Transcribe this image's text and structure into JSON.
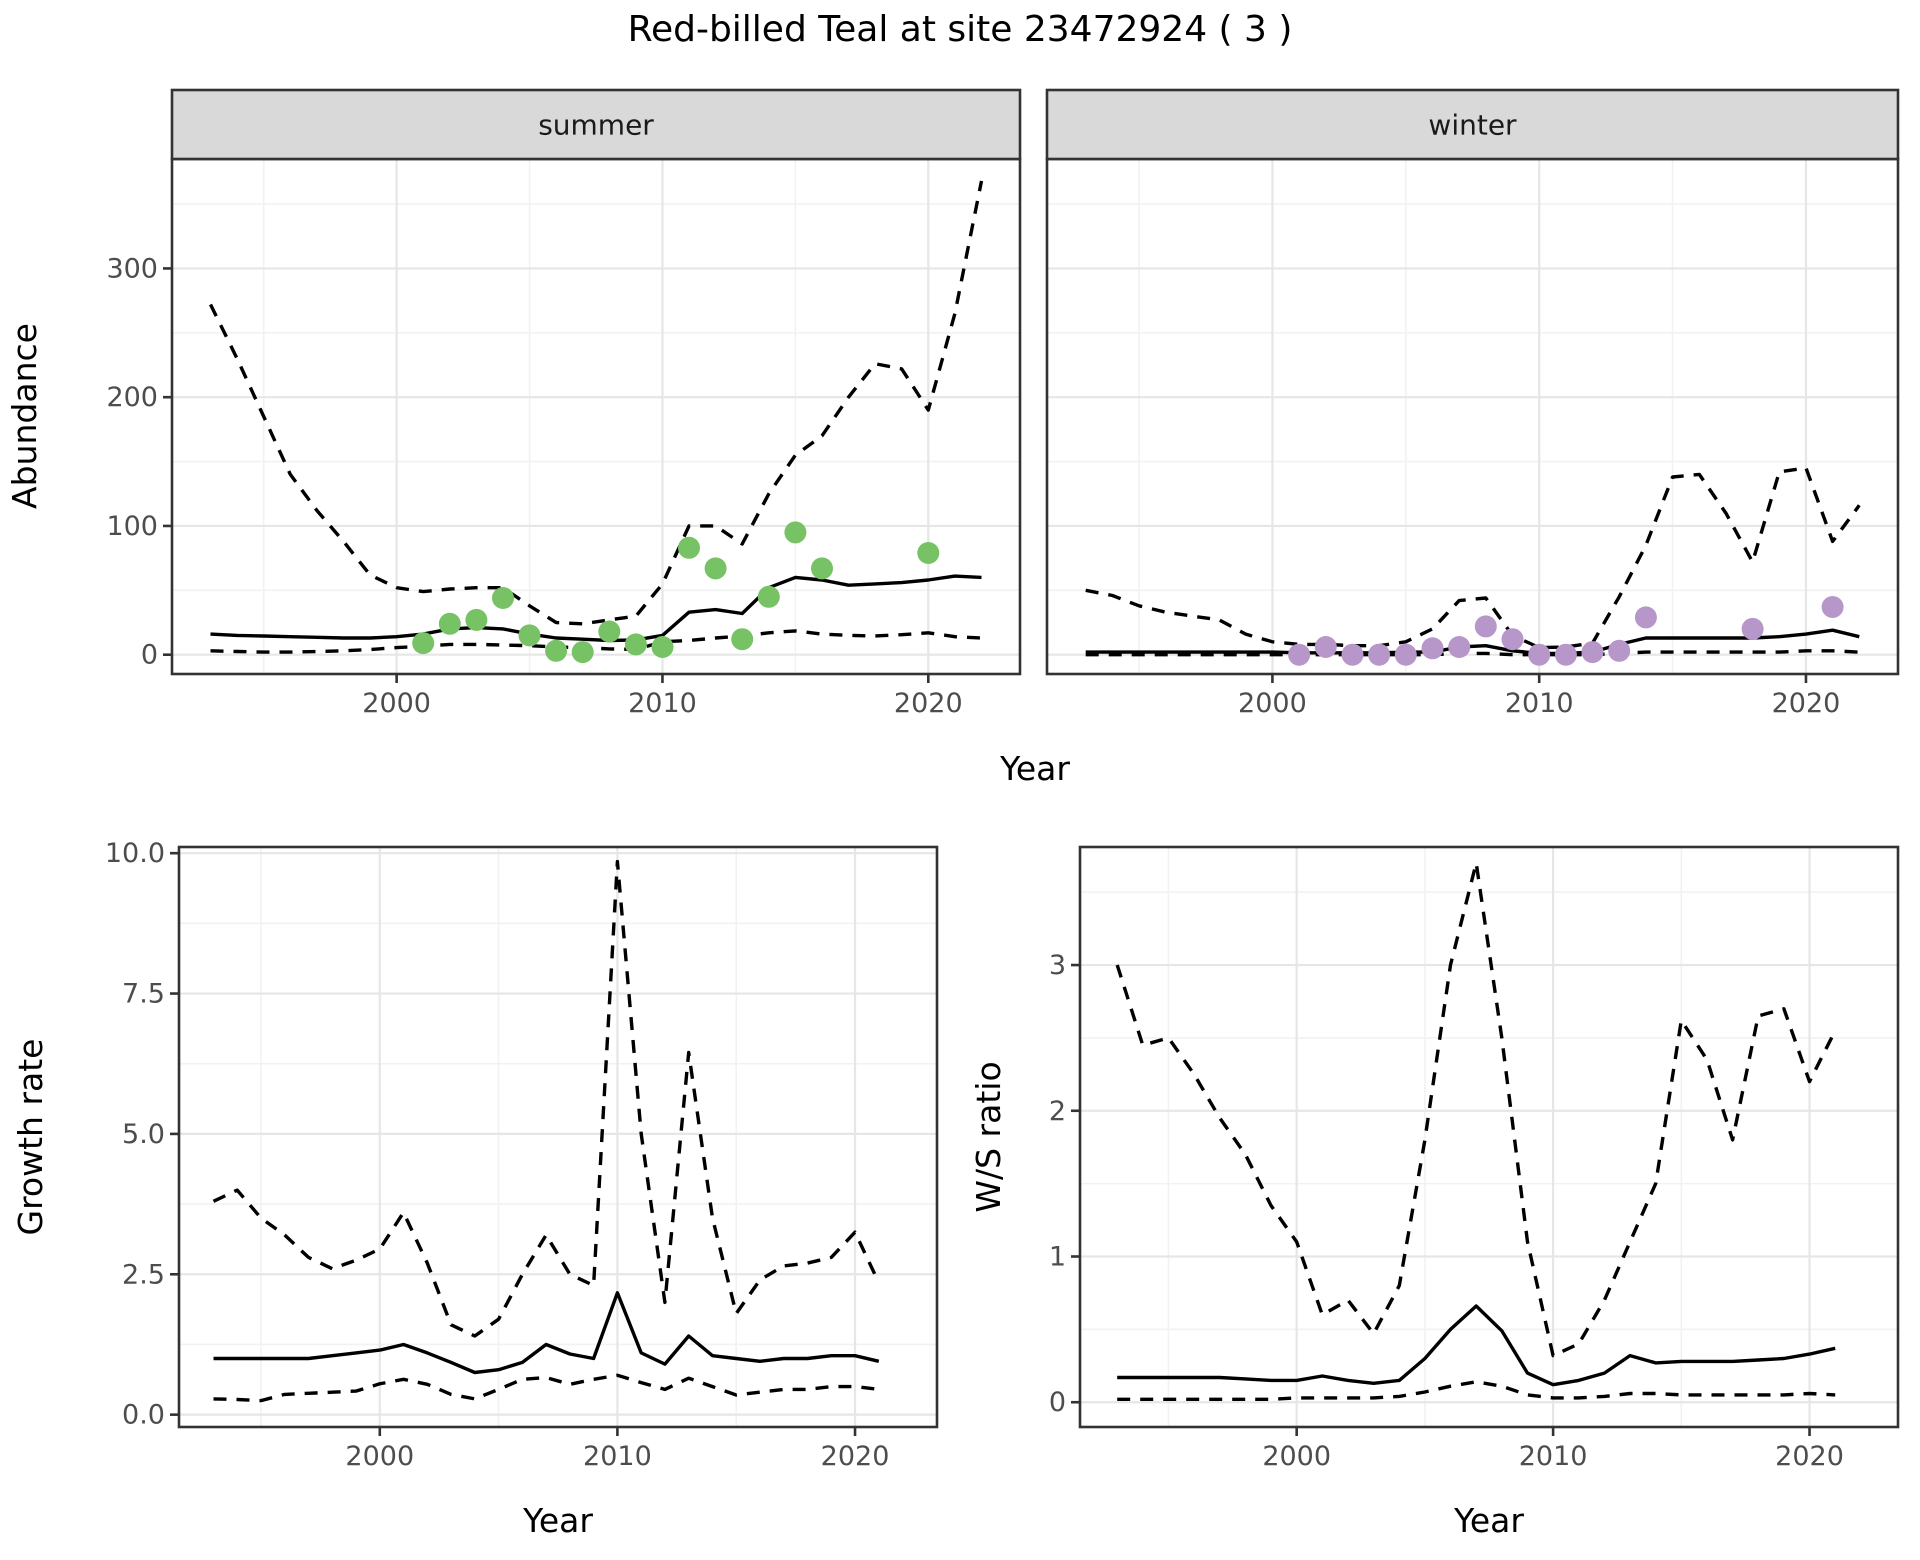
{
  "title": "Red-billed Teal at site 23472924 ( 3 )",
  "chart_data": {
    "type": "line",
    "title": "Red-billed Teal at site 23472924 ( 3 )",
    "x_axis_label": "Year",
    "facet_labels": [
      "summer",
      "winter"
    ],
    "legend_position": "none",
    "grid": "on",
    "style": {
      "line_color": "#000000",
      "summer_point_color": "#76c265",
      "winter_point_color": "#b796c9",
      "strip_fill": "#d9d9d9",
      "strip_text_color": "#1a1a1a",
      "tick_label_color": "#4d4d4d",
      "panel_border_color": "#333333",
      "major_grid_color": "#e6e6e6",
      "minor_grid_color": "#f2f2f2"
    },
    "panels": [
      {
        "id": "abundance-summer",
        "facet": "summer",
        "ylabel": "Abundance",
        "xlabel": "Year",
        "xlim": [
          1991.55,
          2023.45
        ],
        "ylim": [
          -15,
          385
        ],
        "xticks": [
          2000,
          2010,
          2020
        ],
        "xtick_labels": [
          "2000",
          "2010",
          "2020"
        ],
        "xticks_minor": [
          1995,
          2005,
          2015
        ],
        "yticks": [
          0,
          100,
          200,
          300
        ],
        "ytick_labels": [
          "0",
          "100",
          "200",
          "300"
        ],
        "yticks_minor": [
          50,
          150,
          250,
          350
        ],
        "years": [
          1993,
          1994,
          1995,
          1996,
          1997,
          1998,
          1999,
          2000,
          2001,
          2002,
          2003,
          2004,
          2005,
          2006,
          2007,
          2008,
          2009,
          2010,
          2011,
          2012,
          2013,
          2014,
          2015,
          2016,
          2017,
          2018,
          2019,
          2020,
          2021,
          2022
        ],
        "series": [
          {
            "name": "upper_95ci",
            "style": "dashed",
            "values": [
              272,
              230,
              185,
              140,
              112,
              88,
              62,
              52,
              49,
              51,
              52,
              52,
              38,
              25,
              24,
              27,
              30,
              55,
              100,
              100,
              86,
              125,
              155,
              170,
              200,
              226,
              222,
              190,
              265,
              368
            ]
          },
          {
            "name": "median",
            "style": "solid",
            "values": [
              16,
              15,
              14.5,
              14,
              13.5,
              13,
              13,
              14,
              16,
              20,
              21,
              20,
              16,
              13,
              12,
              11,
              11.5,
              15,
              33,
              35,
              32,
              52,
              60,
              58,
              54,
              55,
              56,
              58,
              61,
              60
            ]
          },
          {
            "name": "lower_95ci",
            "style": "dashed",
            "values": [
              3,
              2.5,
              2,
              2,
              2.5,
              3,
              4,
              5.5,
              6.5,
              8,
              8,
              7.5,
              7,
              6,
              5.5,
              4.5,
              4,
              10,
              11,
              13,
              14.5,
              17,
              18.5,
              16,
              15,
              14.5,
              15.5,
              17,
              14,
              13
            ]
          }
        ],
        "points": {
          "name": "observed-counts-summer",
          "color": "#76c265",
          "years": [
            2001,
            2002,
            2003,
            2004,
            2005,
            2006,
            2007,
            2008,
            2009,
            2010,
            2011,
            2012,
            2013,
            2014,
            2015,
            2016,
            2020
          ],
          "values": [
            9,
            24,
            27,
            44,
            15,
            3,
            2,
            18,
            8,
            6,
            83,
            67,
            12,
            45,
            95,
            67,
            79
          ]
        }
      },
      {
        "id": "abundance-winter",
        "facet": "winter",
        "ylabel": "",
        "xlabel": "Year",
        "xlim": [
          1991.55,
          2023.45
        ],
        "ylim": [
          -15,
          385
        ],
        "xticks": [
          2000,
          2010,
          2020
        ],
        "xtick_labels": [
          "2000",
          "2010",
          "2020"
        ],
        "xticks_minor": [
          1995,
          2005,
          2015
        ],
        "yticks": [
          0,
          100,
          200,
          300
        ],
        "ytick_labels": [
          "0",
          "100",
          "200",
          "300"
        ],
        "yticks_minor": [
          50,
          150,
          250,
          350
        ],
        "show_y_axis": false,
        "years": [
          1993,
          1994,
          1995,
          1996,
          1997,
          1998,
          1999,
          2000,
          2001,
          2002,
          2003,
          2004,
          2005,
          2006,
          2007,
          2008,
          2009,
          2010,
          2011,
          2012,
          2013,
          2014,
          2015,
          2016,
          2017,
          2018,
          2019,
          2020,
          2021,
          2022
        ],
        "series": [
          {
            "name": "upper_95ci",
            "style": "dashed",
            "values": [
              50,
              46,
              38,
              33,
              30,
              27,
              16,
              10,
              8,
              8,
              7,
              7,
              10,
              20,
              42,
              44,
              15,
              5.5,
              6,
              9,
              45,
              85,
              138,
              140,
              110,
              72,
              142,
              145,
              88,
              116
            ]
          },
          {
            "name": "median",
            "style": "solid",
            "values": [
              2,
              2,
              2,
              2,
              2,
              2,
              2,
              2,
              1.5,
              1.5,
              1.5,
              1.5,
              2,
              2,
              6,
              7,
              3,
              1,
              1,
              2,
              8,
              13,
              13,
              13,
              13,
              13,
              14,
              16,
              19,
              14
            ]
          },
          {
            "name": "lower_95ci",
            "style": "dashed",
            "values": [
              0,
              0,
              0,
              0,
              0,
              0,
              0,
              0,
              0,
              0,
              0,
              0,
              0,
              0,
              1,
              1,
              0,
              0,
              0,
              0,
              1,
              2,
              2,
              2,
              2,
              2,
              2,
              3,
              3,
              2
            ]
          }
        ],
        "points": {
          "name": "observed-counts-winter",
          "color": "#b796c9",
          "years": [
            2001,
            2002,
            2003,
            2004,
            2005,
            2006,
            2007,
            2008,
            2009,
            2010,
            2011,
            2012,
            2013,
            2014,
            2018,
            2021
          ],
          "values": [
            0,
            6,
            0,
            0,
            0,
            5,
            6,
            22,
            12,
            0,
            0,
            2,
            3,
            29,
            20,
            37
          ]
        }
      },
      {
        "id": "growth-rate",
        "facet": "",
        "ylabel": "Growth rate",
        "xlabel": "Year",
        "xlim": [
          1991.55,
          2023.45
        ],
        "ylim": [
          -0.22,
          10.11
        ],
        "xticks": [
          2000,
          2010,
          2020
        ],
        "xtick_labels": [
          "2000",
          "2010",
          "2020"
        ],
        "xticks_minor": [
          1995,
          2005,
          2015
        ],
        "yticks": [
          0,
          2.5,
          5,
          7.5,
          10
        ],
        "ytick_labels": [
          "0.0",
          "2.5",
          "5.0",
          "7.5",
          "10.0"
        ],
        "yticks_minor": [
          1.25,
          3.75,
          6.25,
          8.75
        ],
        "years": [
          1993,
          1994,
          1995,
          1996,
          1997,
          1998,
          1999,
          2000,
          2001,
          2002,
          2003,
          2004,
          2005,
          2006,
          2007,
          2008,
          2009,
          2010,
          2011,
          2012,
          2013,
          2014,
          2015,
          2016,
          2017,
          2018,
          2019,
          2020,
          2021
        ],
        "series": [
          {
            "name": "upper_95ci",
            "style": "dashed",
            "values": [
              3.8,
              4.0,
              3.5,
              3.2,
              2.8,
              2.6,
              2.75,
              2.95,
              3.6,
              2.7,
              1.6,
              1.4,
              1.7,
              2.5,
              3.2,
              2.5,
              2.3,
              9.85,
              5.0,
              2.0,
              6.45,
              3.5,
              1.8,
              2.4,
              2.65,
              2.7,
              2.8,
              3.25,
              2.35
            ]
          },
          {
            "name": "median",
            "style": "solid",
            "values": [
              1.0,
              1.0,
              1.0,
              1.0,
              1.0,
              1.05,
              1.1,
              1.15,
              1.25,
              1.1,
              0.93,
              0.75,
              0.8,
              0.93,
              1.25,
              1.08,
              1.0,
              2.17,
              1.1,
              0.9,
              1.4,
              1.05,
              1.0,
              0.95,
              1.0,
              1.0,
              1.05,
              1.05,
              0.95
            ]
          },
          {
            "name": "lower_95ci",
            "style": "dashed",
            "values": [
              0.28,
              0.27,
              0.25,
              0.36,
              0.38,
              0.4,
              0.42,
              0.55,
              0.63,
              0.54,
              0.36,
              0.28,
              0.45,
              0.63,
              0.66,
              0.54,
              0.63,
              0.7,
              0.57,
              0.45,
              0.65,
              0.5,
              0.35,
              0.4,
              0.45,
              0.45,
              0.5,
              0.5,
              0.45
            ]
          }
        ],
        "points": null
      },
      {
        "id": "ws-ratio",
        "facet": "",
        "ylabel": "W/S ratio",
        "xlabel": "Year",
        "xlim": [
          1991.55,
          2023.45
        ],
        "ylim": [
          -0.17,
          3.81
        ],
        "xticks": [
          2000,
          2010,
          2020
        ],
        "xtick_labels": [
          "2000",
          "2010",
          "2020"
        ],
        "xticks_minor": [
          1995,
          2005,
          2015
        ],
        "yticks": [
          0,
          1,
          2,
          3
        ],
        "ytick_labels": [
          "0",
          "1",
          "2",
          "3"
        ],
        "yticks_minor": [
          0.5,
          1.5,
          2.5,
          3.5
        ],
        "years": [
          1993,
          1994,
          1995,
          1996,
          1997,
          1998,
          1999,
          2000,
          2001,
          2002,
          2003,
          2004,
          2005,
          2006,
          2007,
          2008,
          2009,
          2010,
          2011,
          2012,
          2013,
          2014,
          2015,
          2016,
          2017,
          2018,
          2019,
          2020,
          2021
        ],
        "series": [
          {
            "name": "upper_95ci",
            "style": "dashed",
            "values": [
              3.0,
              2.45,
              2.5,
              2.25,
              1.95,
              1.7,
              1.35,
              1.1,
              0.6,
              0.7,
              0.47,
              0.8,
              1.8,
              3.0,
              3.7,
              2.5,
              1.1,
              0.32,
              0.4,
              0.7,
              1.1,
              1.5,
              2.62,
              2.35,
              1.8,
              2.65,
              2.7,
              2.2,
              2.55
            ]
          },
          {
            "name": "median",
            "style": "solid",
            "values": [
              0.17,
              0.17,
              0.17,
              0.17,
              0.17,
              0.16,
              0.15,
              0.15,
              0.18,
              0.15,
              0.13,
              0.15,
              0.3,
              0.5,
              0.66,
              0.49,
              0.2,
              0.12,
              0.15,
              0.2,
              0.32,
              0.27,
              0.28,
              0.28,
              0.28,
              0.29,
              0.3,
              0.33,
              0.37
            ]
          },
          {
            "name": "lower_95ci",
            "style": "dashed",
            "values": [
              0.02,
              0.02,
              0.02,
              0.02,
              0.02,
              0.02,
              0.02,
              0.03,
              0.03,
              0.03,
              0.03,
              0.04,
              0.07,
              0.11,
              0.14,
              0.11,
              0.05,
              0.03,
              0.03,
              0.04,
              0.06,
              0.06,
              0.05,
              0.05,
              0.05,
              0.05,
              0.05,
              0.06,
              0.05
            ]
          }
        ],
        "points": null
      }
    ]
  }
}
